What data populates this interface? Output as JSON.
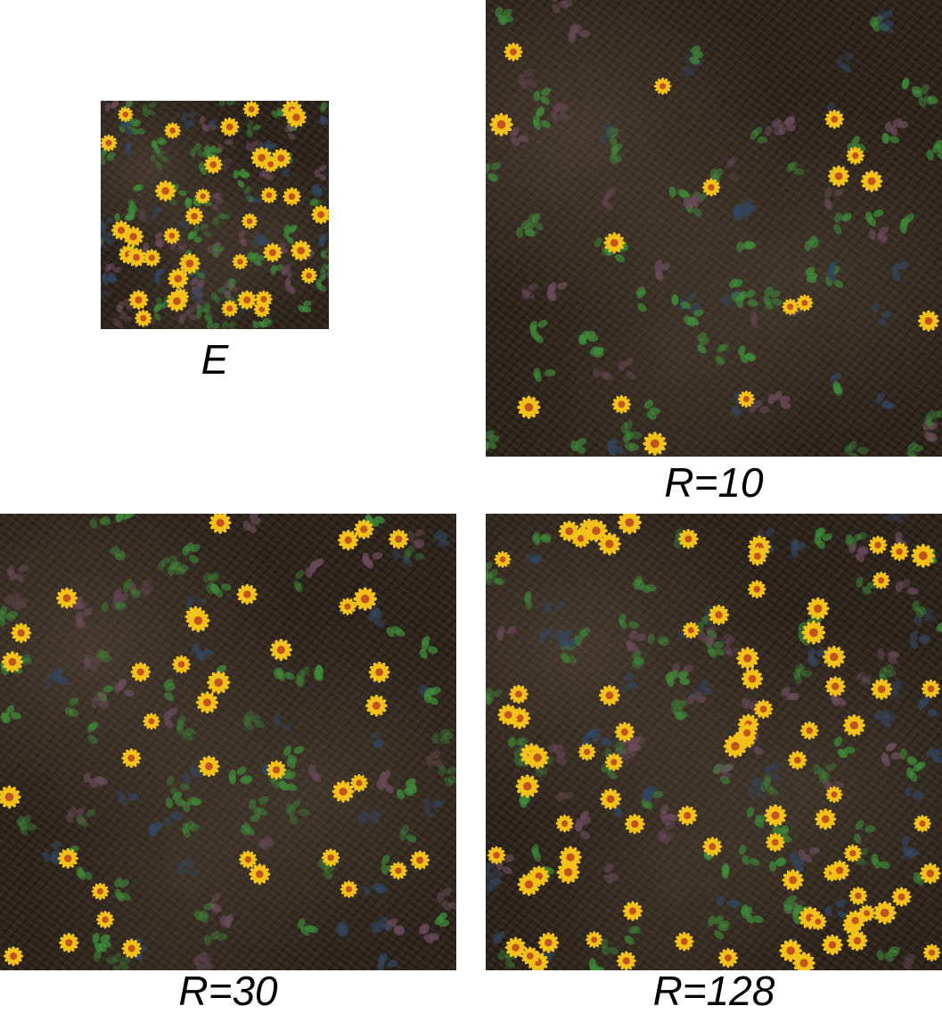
{
  "panels": [
    {
      "id": "e",
      "caption": "E",
      "flower_density": "medium"
    },
    {
      "id": "r10",
      "caption": "R=10",
      "flower_density": "sparse"
    },
    {
      "id": "r30",
      "caption": "R=30",
      "flower_density": "medium"
    },
    {
      "id": "r128",
      "caption": "R=128",
      "flower_density": "dense"
    }
  ],
  "colors": {
    "ground": "#2c241c",
    "leaf_green": "#3f8a3a",
    "leaf_purple": "#6a4a5a",
    "leaf_blue": "#33465f",
    "petal": "#f2c21b",
    "flower_center": "#c0541a",
    "caption_text": "#000000"
  }
}
